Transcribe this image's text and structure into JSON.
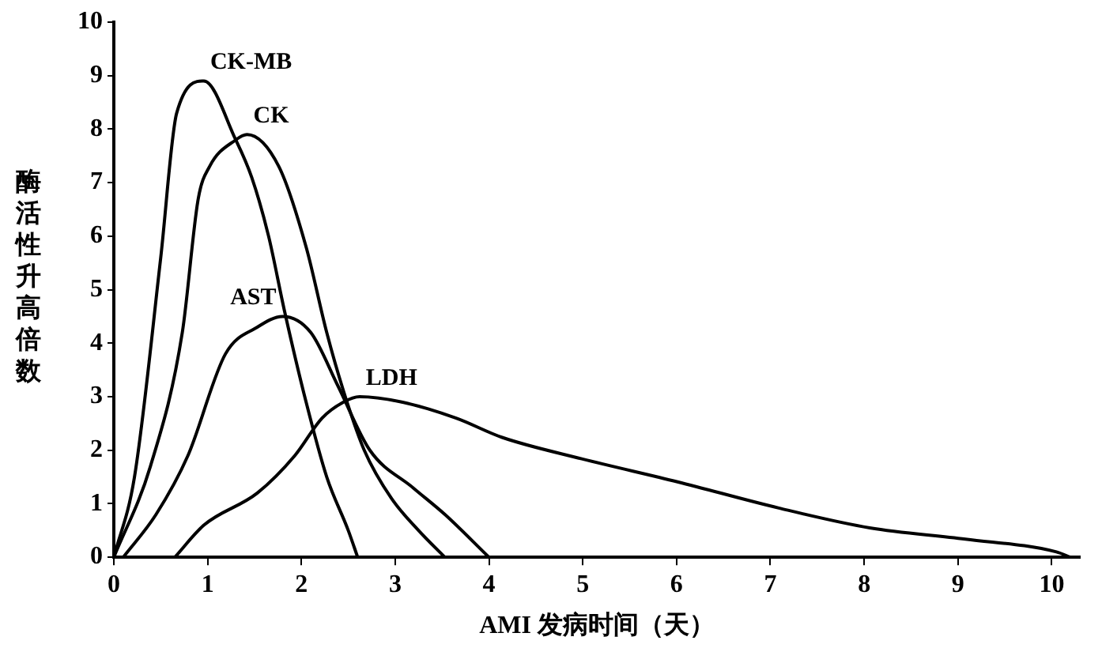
{
  "chart_data": {
    "type": "line",
    "xlabel": "AMI 发病时间（天）",
    "ylabel": "酶活性升高倍数",
    "xlim": [
      0,
      10.3
    ],
    "xticks": [
      0,
      1,
      2,
      3,
      4,
      5,
      6,
      7,
      8,
      9,
      10
    ],
    "ylim": [
      0,
      10
    ],
    "yticks": [
      0,
      1,
      2,
      3,
      4,
      5,
      6,
      7,
      8,
      9,
      10
    ],
    "grid": false,
    "legend": false,
    "marker": "none",
    "line_style": "solid",
    "series": [
      {
        "name": "CK-MB",
        "color": "#000000",
        "x": [
          0,
          0.22,
          0.5,
          0.67,
          0.96,
          1.3,
          1.47,
          1.65,
          1.82,
          2.05,
          2.27,
          2.5,
          2.6
        ],
        "values": [
          0,
          1.5,
          5.6,
          8.3,
          8.9,
          7.8,
          7.1,
          6.0,
          4.6,
          2.9,
          1.5,
          0.5,
          0
        ]
      },
      {
        "name": "CK",
        "color": "#000000",
        "x": [
          0,
          0.39,
          0.73,
          0.9,
          1.02,
          1.3,
          1.42,
          1.76,
          2.05,
          2.27,
          2.45,
          2.67,
          2.96,
          3.25,
          3.53
        ],
        "values": [
          0,
          1.7,
          4.2,
          6.7,
          7.3,
          7.8,
          7.9,
          7.3,
          5.8,
          4.2,
          3.1,
          2.0,
          1.1,
          0.5,
          0
        ]
      },
      {
        "name": "AST",
        "color": "#000000",
        "x": [
          0.1,
          0.45,
          0.79,
          1.19,
          1.53,
          1.8,
          2.1,
          2.39,
          2.73,
          3.19,
          3.53,
          4.0
        ],
        "values": [
          0,
          0.8,
          1.9,
          3.8,
          4.3,
          4.5,
          4.2,
          3.2,
          2.0,
          1.3,
          0.8,
          0
        ]
      },
      {
        "name": "LDH",
        "color": "#000000",
        "x": [
          0.65,
          0.96,
          1.53,
          1.93,
          2.22,
          2.45,
          2.62,
          3.07,
          3.65,
          4.14,
          4.99,
          6.01,
          7.09,
          8.06,
          9.08,
          10.05,
          10.2
        ],
        "values": [
          0,
          0.6,
          1.2,
          1.9,
          2.6,
          2.9,
          3.0,
          2.9,
          2.6,
          2.24,
          1.84,
          1.41,
          0.92,
          0.55,
          0.34,
          0.1,
          0
        ]
      }
    ]
  }
}
